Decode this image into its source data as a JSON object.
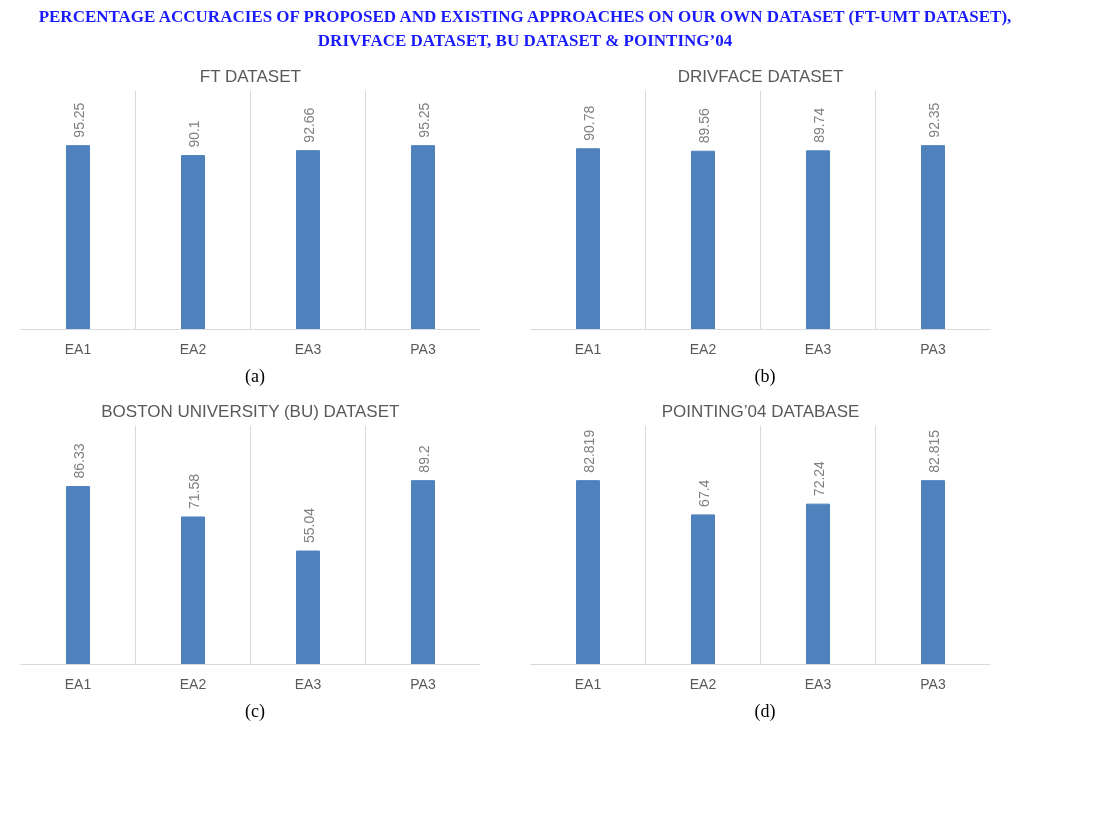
{
  "chart_data": [
    {
      "type": "bar",
      "title": "FT DATASET",
      "categories": [
        "EA1",
        "EA2",
        "EA3",
        "PA3"
      ],
      "values": [
        95.25,
        90.1,
        92.66,
        95.25
      ],
      "color": "#4f81bd",
      "data_labels": true,
      "grid": "x",
      "tick_labels": "x",
      "annotations": [
        "PERCENTAGE ACCURACIES OF PROPOSED AND EXISTING APPROACHES ON OUR OWN DATASET (FT-UMT DATASET), DRIVFACE DATASET, BU DATASET & POINTING’04",
        "(a)"
      ]
    },
    {
      "type": "bar",
      "title": "DRIVFACE DATASET",
      "categories": [
        "EA1",
        "EA2",
        "EA3",
        "PA3"
      ],
      "values": [
        90.78,
        89.56,
        89.74,
        92.35
      ],
      "color": "#4f81bd",
      "data_labels": true,
      "grid": "x",
      "tick_labels": "x",
      "annotations": [
        "(b)"
      ]
    },
    {
      "type": "bar",
      "title": "BOSTON UNIVERSITY (BU) DATASET",
      "categories": [
        "EA1",
        "EA2",
        "EA3",
        "PA3"
      ],
      "values": [
        86.33,
        71.58,
        55.04,
        89.2
      ],
      "color": "#4f81bd",
      "data_labels": true,
      "grid": "x",
      "tick_labels": "x",
      "annotations": [
        "(c)"
      ]
    },
    {
      "type": "bar",
      "title": "POINTING’04 DATABASE",
      "categories": [
        "EA1",
        "EA2",
        "EA3",
        "PA3"
      ],
      "values": [
        82.819,
        67.4,
        72.24,
        82.815
      ],
      "color": "#4f81bd",
      "data_labels": true,
      "grid": "x",
      "tick_labels": "x",
      "annotations": [
        "(d)"
      ]
    }
  ]
}
